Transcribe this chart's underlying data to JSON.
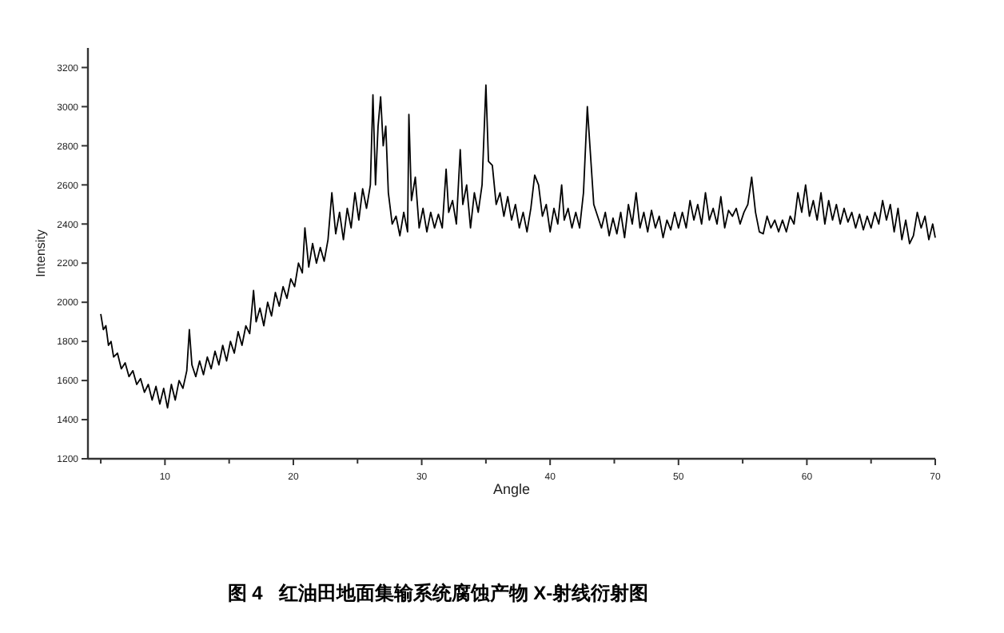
{
  "chart_data": {
    "type": "line",
    "xlabel": "Angle",
    "ylabel": "Intensity",
    "annotations": [
      "图 4   红油田地面集输系统腐蚀产物 X-射线衍射图"
    ],
    "xlim": [
      4,
      70
    ],
    "xticks": [
      {
        "value": 5,
        "label": null
      },
      10,
      {
        "value": 15,
        "label": null
      },
      20,
      {
        "value": 25,
        "label": null
      },
      30,
      {
        "value": 35,
        "label": null
      },
      40,
      {
        "value": 45,
        "label": null
      },
      50,
      {
        "value": 55,
        "label": null
      },
      60,
      {
        "value": 65,
        "label": null
      },
      70
    ],
    "ylim": [
      1200,
      3300
    ],
    "yticks": [
      1200,
      1400,
      1600,
      1800,
      2000,
      2200,
      2400,
      2600,
      2800,
      3000,
      3200
    ],
    "grid": false,
    "marker": "none",
    "line_style": "solid",
    "series": [
      {
        "color": "#000000",
        "x": [
          5.0,
          5.2,
          5.4,
          5.6,
          5.8,
          6.0,
          6.3,
          6.6,
          6.9,
          7.2,
          7.5,
          7.8,
          8.1,
          8.4,
          8.7,
          9.0,
          9.3,
          9.6,
          9.9,
          10.2,
          10.5,
          10.8,
          11.1,
          11.4,
          11.7,
          11.9,
          12.1,
          12.4,
          12.7,
          13.0,
          13.3,
          13.6,
          13.9,
          14.2,
          14.5,
          14.8,
          15.1,
          15.4,
          15.7,
          16.0,
          16.3,
          16.6,
          16.9,
          17.1,
          17.4,
          17.7,
          18.0,
          18.3,
          18.6,
          18.9,
          19.2,
          19.5,
          19.8,
          20.1,
          20.4,
          20.7,
          20.9,
          21.2,
          21.5,
          21.8,
          22.1,
          22.4,
          22.7,
          23.0,
          23.3,
          23.6,
          23.9,
          24.2,
          24.5,
          24.8,
          25.1,
          25.4,
          25.7,
          26.0,
          26.2,
          26.4,
          26.6,
          26.8,
          27.0,
          27.2,
          27.4,
          27.7,
          28.0,
          28.3,
          28.6,
          28.9,
          29.0,
          29.2,
          29.5,
          29.8,
          30.1,
          30.4,
          30.7,
          31.0,
          31.3,
          31.6,
          31.9,
          32.1,
          32.4,
          32.7,
          33.0,
          33.2,
          33.5,
          33.8,
          34.1,
          34.4,
          34.7,
          35.0,
          35.2,
          35.5,
          35.8,
          36.1,
          36.4,
          36.7,
          37.0,
          37.3,
          37.6,
          37.9,
          38.2,
          38.5,
          38.8,
          39.1,
          39.4,
          39.7,
          40.0,
          40.3,
          40.6,
          40.9,
          41.1,
          41.4,
          41.7,
          42.0,
          42.3,
          42.6,
          42.9,
          43.1,
          43.4,
          43.7,
          44.0,
          44.3,
          44.6,
          44.9,
          45.2,
          45.5,
          45.8,
          46.1,
          46.4,
          46.7,
          47.0,
          47.3,
          47.6,
          47.9,
          48.2,
          48.5,
          48.8,
          49.1,
          49.4,
          49.7,
          50.0,
          50.3,
          50.6,
          50.9,
          51.2,
          51.5,
          51.8,
          52.1,
          52.4,
          52.7,
          53.0,
          53.3,
          53.6,
          53.9,
          54.2,
          54.5,
          54.8,
          55.1,
          55.4,
          55.7,
          56.0,
          56.3,
          56.6,
          56.9,
          57.2,
          57.5,
          57.8,
          58.1,
          58.4,
          58.7,
          59.0,
          59.3,
          59.6,
          59.9,
          60.2,
          60.5,
          60.8,
          61.1,
          61.4,
          61.7,
          62.0,
          62.3,
          62.6,
          62.9,
          63.2,
          63.5,
          63.8,
          64.1,
          64.4,
          64.7,
          65.0,
          65.3,
          65.6,
          65.9,
          66.2,
          66.5,
          66.8,
          67.1,
          67.4,
          67.7,
          68.0,
          68.3,
          68.6,
          68.9,
          69.2,
          69.5,
          69.8,
          70.0
        ],
        "values": [
          1940,
          1860,
          1880,
          1780,
          1800,
          1720,
          1740,
          1660,
          1690,
          1620,
          1650,
          1580,
          1610,
          1540,
          1580,
          1500,
          1570,
          1480,
          1560,
          1460,
          1580,
          1500,
          1600,
          1560,
          1650,
          1860,
          1680,
          1620,
          1700,
          1630,
          1720,
          1660,
          1750,
          1680,
          1780,
          1700,
          1800,
          1740,
          1850,
          1780,
          1880,
          1840,
          2060,
          1900,
          1970,
          1880,
          2000,
          1930,
          2050,
          1980,
          2080,
          2020,
          2120,
          2080,
          2200,
          2150,
          2380,
          2180,
          2300,
          2200,
          2280,
          2210,
          2320,
          2560,
          2350,
          2460,
          2320,
          2480,
          2380,
          2560,
          2420,
          2580,
          2480,
          2600,
          3060,
          2600,
          2900,
          3050,
          2800,
          2900,
          2560,
          2400,
          2440,
          2340,
          2460,
          2360,
          2960,
          2520,
          2640,
          2380,
          2480,
          2360,
          2460,
          2380,
          2450,
          2380,
          2680,
          2460,
          2520,
          2400,
          2780,
          2500,
          2600,
          2380,
          2560,
          2460,
          2600,
          3110,
          2720,
          2700,
          2500,
          2560,
          2440,
          2540,
          2420,
          2500,
          2380,
          2460,
          2360,
          2480,
          2650,
          2600,
          2440,
          2500,
          2360,
          2480,
          2400,
          2600,
          2420,
          2480,
          2380,
          2460,
          2380,
          2560,
          3000,
          2800,
          2500,
          2440,
          2380,
          2460,
          2340,
          2430,
          2350,
          2460,
          2330,
          2500,
          2400,
          2560,
          2380,
          2460,
          2360,
          2470,
          2380,
          2440,
          2330,
          2420,
          2370,
          2460,
          2380,
          2460,
          2380,
          2520,
          2420,
          2500,
          2400,
          2560,
          2420,
          2480,
          2400,
          2540,
          2380,
          2470,
          2440,
          2480,
          2400,
          2460,
          2500,
          2640,
          2460,
          2360,
          2350,
          2440,
          2380,
          2420,
          2360,
          2420,
          2360,
          2440,
          2400,
          2560,
          2460,
          2600,
          2440,
          2520,
          2420,
          2560,
          2400,
          2520,
          2420,
          2500,
          2400,
          2480,
          2410,
          2460,
          2380,
          2450,
          2370,
          2440,
          2380,
          2460,
          2400,
          2520,
          2420,
          2500,
          2360,
          2480,
          2320,
          2420,
          2300,
          2340,
          2460,
          2380,
          2440,
          2320,
          2400,
          2330
        ]
      }
    ]
  }
}
